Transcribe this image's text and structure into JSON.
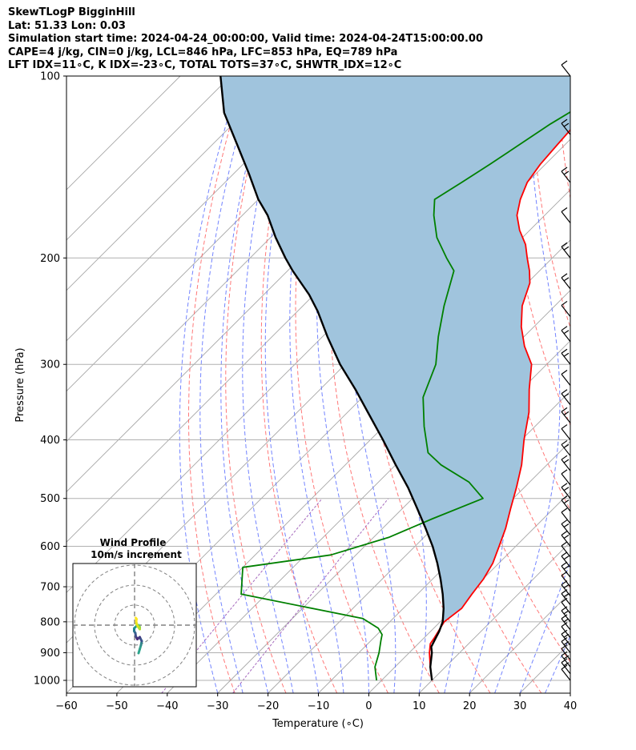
{
  "header": {
    "line1": "SkewTLogP BigginHill",
    "line2": "Lat: 51.33   Lon: 0.03",
    "line3": "Simulation start time: 2024-04-24_00:00:00, Valid time: 2024-04-24T15:00:00.00",
    "line4": "CAPE=4 j/kg, CIN=0 j/kg, LCL=846 hPa, LFC=853 hPa, EQ=789 hPa",
    "line5": "LFT IDX=11∘C, K IDX=-23∘C, TOTAL TOTS=37∘C, SHWTR_IDX=12∘C"
  },
  "hodograph": {
    "title": "Wind Profile",
    "subtitle": "10m/s increment"
  },
  "colors": {
    "temperature": "#ff0000",
    "dewpoint": "#008000",
    "parcel": "#000000",
    "cape_fill": "#a0c4dd",
    "isotherm": "#a6a6a6",
    "dry_adiabat": "#ff6060",
    "moist_adiabat": "#5a6eff",
    "mixing_ratio": "#9b59b6"
  },
  "chart_data": {
    "type": "line",
    "subtype": "skew-t log-p",
    "xlabel": "Temperature (∘C)",
    "ylabel": "Pressure (hPa)",
    "xlim": [
      -60,
      40
    ],
    "ylim": [
      1050,
      100
    ],
    "x_ticks": [
      "−60",
      "−50",
      "−40",
      "−30",
      "−20",
      "−10",
      "0",
      "10",
      "20",
      "30",
      "40"
    ],
    "y_ticks": [
      100,
      200,
      300,
      400,
      500,
      600,
      700,
      800,
      900,
      1000
    ],
    "grid": true,
    "series": [
      {
        "key": "temperature",
        "points": [
          [
            10,
            1000
          ],
          [
            7,
            950
          ],
          [
            4,
            900
          ],
          [
            2.4,
            870
          ],
          [
            2,
            850
          ],
          [
            0.8,
            800
          ],
          [
            1.6,
            760
          ],
          [
            0.8,
            720
          ],
          [
            0.1,
            680
          ],
          [
            -1.2,
            640
          ],
          [
            -3.3,
            600
          ],
          [
            -5.6,
            560
          ],
          [
            -8.5,
            520
          ],
          [
            -11.5,
            480
          ],
          [
            -15,
            440
          ],
          [
            -19.5,
            400
          ],
          [
            -24,
            360
          ],
          [
            -28.5,
            330
          ],
          [
            -33,
            300
          ],
          [
            -38,
            280
          ],
          [
            -42.5,
            260
          ],
          [
            -46.5,
            240
          ],
          [
            -49.5,
            220
          ],
          [
            -52,
            210
          ],
          [
            -55,
            200
          ],
          [
            -58,
            190
          ],
          [
            -62,
            180
          ],
          [
            -65.5,
            170
          ],
          [
            -68,
            160
          ],
          [
            -70,
            150
          ],
          [
            -71,
            140
          ],
          [
            -71.5,
            130
          ],
          [
            -72,
            120
          ],
          [
            -72,
            110
          ],
          [
            -71.5,
            100
          ]
        ]
      },
      {
        "key": "dewpoint",
        "points": [
          [
            -1,
            1000
          ],
          [
            -4,
            950
          ],
          [
            -6,
            900
          ],
          [
            -8,
            860
          ],
          [
            -9,
            840
          ],
          [
            -11,
            820
          ],
          [
            -16,
            790
          ],
          [
            -45,
            720
          ],
          [
            -50,
            650
          ],
          [
            -35,
            620
          ],
          [
            -27,
            580
          ],
          [
            -22,
            540
          ],
          [
            -16,
            500
          ],
          [
            -22,
            470
          ],
          [
            -31,
            440
          ],
          [
            -36,
            420
          ],
          [
            -42,
            380
          ],
          [
            -48,
            340
          ],
          [
            -52,
            300
          ],
          [
            -57,
            270
          ],
          [
            -62,
            240
          ],
          [
            -67,
            210
          ],
          [
            -71,
            200
          ],
          [
            -77,
            185
          ],
          [
            -82,
            170
          ],
          [
            -85,
            160
          ],
          [
            -83,
            150
          ],
          [
            -81,
            140
          ],
          [
            -77,
            120
          ],
          [
            -74,
            110
          ],
          [
            -71,
            100
          ]
        ]
      },
      {
        "key": "parcel",
        "points": [
          [
            10,
            1000
          ],
          [
            7,
            950
          ],
          [
            4.5,
            900
          ],
          [
            3.2,
            880
          ],
          [
            2.3,
            850
          ],
          [
            1.7,
            830
          ],
          [
            0.5,
            800
          ],
          [
            -2,
            760
          ],
          [
            -5,
            720
          ],
          [
            -8.4,
            680
          ],
          [
            -12.2,
            640
          ],
          [
            -16.5,
            600
          ],
          [
            -21.5,
            560
          ],
          [
            -27,
            520
          ],
          [
            -33,
            480
          ],
          [
            -40,
            440
          ],
          [
            -47.5,
            400
          ],
          [
            -56,
            360
          ],
          [
            -63,
            330
          ],
          [
            -71,
            300
          ],
          [
            -79,
            270
          ],
          [
            -86,
            245
          ],
          [
            -91,
            230
          ],
          [
            -99,
            210
          ],
          [
            -103,
            200
          ],
          [
            -109,
            185
          ],
          [
            -115,
            170
          ],
          [
            -120,
            160
          ],
          [
            -127,
            145
          ],
          [
            -135,
            130
          ],
          [
            -144,
            115
          ],
          [
            -152,
            100
          ]
        ]
      }
    ],
    "wind_profile": {
      "increment_ms": 10,
      "points": [
        [
          1.0,
          -7.0
        ],
        [
          1.3,
          -6.0
        ],
        [
          1.6,
          -5.0
        ],
        [
          1.8,
          -4.0
        ],
        [
          1.3,
          -3.0
        ],
        [
          0.7,
          -3.5
        ],
        [
          0.3,
          -2.8
        ],
        [
          0.2,
          -2.0
        ],
        [
          -0.1,
          -1.5
        ],
        [
          -0.1,
          -0.8
        ],
        [
          0.5,
          -0.2
        ],
        [
          1.0,
          0.0
        ],
        [
          1.3,
          -0.5
        ],
        [
          1.3,
          -1.0
        ],
        [
          0.8,
          -0.3
        ],
        [
          0.5,
          0.3
        ],
        [
          0.4,
          1.0
        ],
        [
          0.5,
          1.5
        ],
        [
          0.3,
          1.8
        ]
      ]
    }
  }
}
